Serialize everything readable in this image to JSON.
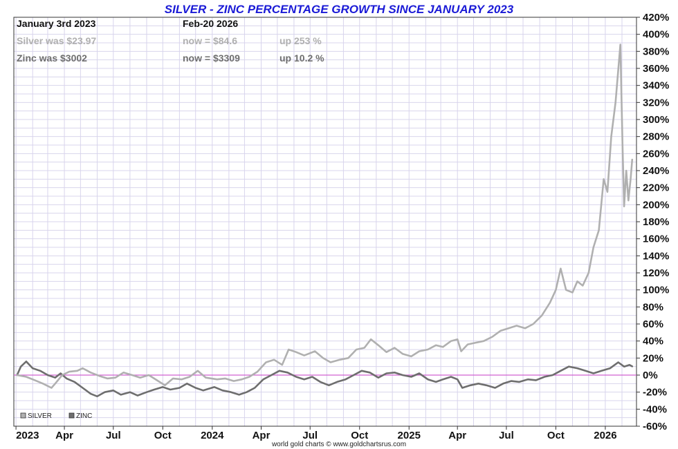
{
  "chart_data": {
    "type": "line",
    "title": "SILVER - ZINC PERCENTAGE GROWTH SINCE JANUARY 2023",
    "header": {
      "start_label": "January 3rd 2023",
      "end_label": "Feb-20  2026",
      "rows": [
        {
          "series": "SILVER",
          "was": "Silver was $23.97",
          "now": "now = $84.6",
          "change": "up 253 %",
          "color": "#b0b0b0"
        },
        {
          "series": "ZINC",
          "was": "Zinc was $3002",
          "now": "now = $3309",
          "change": "up 10.2 %",
          "color": "#6e6e6e"
        }
      ]
    },
    "ylim": [
      -60,
      420
    ],
    "y_ticks": [
      420,
      400,
      380,
      360,
      340,
      320,
      300,
      280,
      260,
      240,
      220,
      200,
      180,
      160,
      140,
      120,
      100,
      80,
      60,
      40,
      20,
      0,
      -20,
      -40,
      -60
    ],
    "y_tick_labels": [
      "420%",
      "400%",
      "380%",
      "360%",
      "340%",
      "320%",
      "300%",
      "280%",
      "260%",
      "240%",
      "220%",
      "200%",
      "180%",
      "160%",
      "140%",
      "120%",
      "100%",
      "80%",
      "60%",
      "40%",
      "20%",
      "0%",
      "-20%",
      "-40%",
      "-60%"
    ],
    "xlim": [
      "2023-01-03",
      "2026-02-20"
    ],
    "x_ticks": [
      {
        "date": "2023-01-01",
        "label": "2023"
      },
      {
        "date": "2023-04-01",
        "label": "Apr"
      },
      {
        "date": "2023-07-01",
        "label": "Jul"
      },
      {
        "date": "2023-10-01",
        "label": "Oct"
      },
      {
        "date": "2024-01-01",
        "label": "2024"
      },
      {
        "date": "2024-04-01",
        "label": "Apr"
      },
      {
        "date": "2024-07-01",
        "label": "Jul"
      },
      {
        "date": "2024-10-01",
        "label": "Oct"
      },
      {
        "date": "2025-01-01",
        "label": "2025"
      },
      {
        "date": "2025-04-01",
        "label": "Apr"
      },
      {
        "date": "2025-07-01",
        "label": "Jul"
      },
      {
        "date": "2025-10-01",
        "label": "Oct"
      },
      {
        "date": "2026-01-01",
        "label": "2026"
      }
    ],
    "grid": true,
    "zero_line_color": "#d060d0",
    "legend": "bottom-left",
    "legend_entries": [
      "SILVER",
      "ZINC"
    ],
    "source": "world gold charts © www.goldchartsrus.com",
    "series": [
      {
        "name": "SILVER",
        "color": "#b0b0b0",
        "points": [
          [
            "2023-01-03",
            0
          ],
          [
            "2023-01-20",
            -2
          ],
          [
            "2023-02-05",
            -6
          ],
          [
            "2023-02-20",
            -10
          ],
          [
            "2023-03-08",
            -15
          ],
          [
            "2023-03-15",
            -10
          ],
          [
            "2023-03-28",
            0
          ],
          [
            "2023-04-10",
            4
          ],
          [
            "2023-04-25",
            5
          ],
          [
            "2023-05-05",
            8
          ],
          [
            "2023-05-20",
            3
          ],
          [
            "2023-06-05",
            -1
          ],
          [
            "2023-06-20",
            -4
          ],
          [
            "2023-07-05",
            -3
          ],
          [
            "2023-07-20",
            3
          ],
          [
            "2023-08-05",
            0
          ],
          [
            "2023-08-20",
            -3
          ],
          [
            "2023-09-05",
            0
          ],
          [
            "2023-09-20",
            -6
          ],
          [
            "2023-10-05",
            -12
          ],
          [
            "2023-10-20",
            -4
          ],
          [
            "2023-11-05",
            -5
          ],
          [
            "2023-11-20",
            -2
          ],
          [
            "2023-12-05",
            5
          ],
          [
            "2023-12-20",
            -3
          ],
          [
            "2024-01-10",
            -5
          ],
          [
            "2024-01-25",
            -4
          ],
          [
            "2024-02-10",
            -7
          ],
          [
            "2024-02-25",
            -5
          ],
          [
            "2024-03-10",
            -2
          ],
          [
            "2024-03-25",
            4
          ],
          [
            "2024-04-10",
            15
          ],
          [
            "2024-04-25",
            18
          ],
          [
            "2024-05-10",
            12
          ],
          [
            "2024-05-22",
            30
          ],
          [
            "2024-06-05",
            27
          ],
          [
            "2024-06-20",
            23
          ],
          [
            "2024-07-10",
            28
          ],
          [
            "2024-07-25",
            20
          ],
          [
            "2024-08-08",
            15
          ],
          [
            "2024-08-25",
            18
          ],
          [
            "2024-09-10",
            20
          ],
          [
            "2024-09-25",
            30
          ],
          [
            "2024-10-10",
            32
          ],
          [
            "2024-10-22",
            42
          ],
          [
            "2024-11-05",
            35
          ],
          [
            "2024-11-20",
            27
          ],
          [
            "2024-12-05",
            32
          ],
          [
            "2024-12-20",
            25
          ],
          [
            "2025-01-05",
            22
          ],
          [
            "2025-01-20",
            28
          ],
          [
            "2025-02-05",
            30
          ],
          [
            "2025-02-20",
            35
          ],
          [
            "2025-03-05",
            33
          ],
          [
            "2025-03-20",
            40
          ],
          [
            "2025-04-01",
            42
          ],
          [
            "2025-04-08",
            28
          ],
          [
            "2025-04-20",
            36
          ],
          [
            "2025-05-05",
            38
          ],
          [
            "2025-05-20",
            40
          ],
          [
            "2025-06-05",
            45
          ],
          [
            "2025-06-20",
            52
          ],
          [
            "2025-07-05",
            55
          ],
          [
            "2025-07-20",
            58
          ],
          [
            "2025-08-05",
            55
          ],
          [
            "2025-08-20",
            60
          ],
          [
            "2025-09-05",
            70
          ],
          [
            "2025-09-20",
            85
          ],
          [
            "2025-10-01",
            100
          ],
          [
            "2025-10-10",
            125
          ],
          [
            "2025-10-20",
            100
          ],
          [
            "2025-11-01",
            97
          ],
          [
            "2025-11-10",
            110
          ],
          [
            "2025-11-20",
            105
          ],
          [
            "2025-12-01",
            120
          ],
          [
            "2025-12-10",
            150
          ],
          [
            "2025-12-20",
            170
          ],
          [
            "2025-12-29",
            230
          ],
          [
            "2026-01-05",
            215
          ],
          [
            "2026-01-12",
            280
          ],
          [
            "2026-01-20",
            320
          ],
          [
            "2026-01-29",
            388
          ],
          [
            "2026-02-02",
            270
          ],
          [
            "2026-02-05",
            198
          ],
          [
            "2026-02-09",
            240
          ],
          [
            "2026-02-13",
            205
          ],
          [
            "2026-02-17",
            230
          ],
          [
            "2026-02-20",
            253
          ]
        ]
      },
      {
        "name": "ZINC",
        "color": "#6e6e6e",
        "points": [
          [
            "2023-01-03",
            0
          ],
          [
            "2023-01-10",
            10
          ],
          [
            "2023-01-20",
            16
          ],
          [
            "2023-02-01",
            8
          ],
          [
            "2023-02-15",
            5
          ],
          [
            "2023-03-01",
            0
          ],
          [
            "2023-03-15",
            -3
          ],
          [
            "2023-03-25",
            2
          ],
          [
            "2023-04-05",
            -4
          ],
          [
            "2023-04-20",
            -8
          ],
          [
            "2023-05-05",
            -15
          ],
          [
            "2023-05-20",
            -22
          ],
          [
            "2023-06-01",
            -25
          ],
          [
            "2023-06-15",
            -20
          ],
          [
            "2023-07-01",
            -18
          ],
          [
            "2023-07-15",
            -23
          ],
          [
            "2023-08-01",
            -20
          ],
          [
            "2023-08-15",
            -24
          ],
          [
            "2023-09-01",
            -20
          ],
          [
            "2023-09-15",
            -17
          ],
          [
            "2023-10-01",
            -14
          ],
          [
            "2023-10-15",
            -17
          ],
          [
            "2023-11-01",
            -15
          ],
          [
            "2023-11-15",
            -10
          ],
          [
            "2023-12-01",
            -15
          ],
          [
            "2023-12-15",
            -18
          ],
          [
            "2024-01-05",
            -14
          ],
          [
            "2024-01-20",
            -18
          ],
          [
            "2024-02-05",
            -20
          ],
          [
            "2024-02-20",
            -23
          ],
          [
            "2024-03-05",
            -20
          ],
          [
            "2024-03-20",
            -15
          ],
          [
            "2024-04-05",
            -5
          ],
          [
            "2024-04-20",
            0
          ],
          [
            "2024-05-05",
            5
          ],
          [
            "2024-05-20",
            3
          ],
          [
            "2024-06-05",
            -2
          ],
          [
            "2024-06-20",
            -5
          ],
          [
            "2024-07-05",
            -2
          ],
          [
            "2024-07-20",
            -8
          ],
          [
            "2024-08-05",
            -12
          ],
          [
            "2024-08-20",
            -8
          ],
          [
            "2024-09-05",
            -5
          ],
          [
            "2024-09-20",
            0
          ],
          [
            "2024-10-05",
            5
          ],
          [
            "2024-10-20",
            3
          ],
          [
            "2024-11-05",
            -3
          ],
          [
            "2024-11-20",
            2
          ],
          [
            "2024-12-05",
            3
          ],
          [
            "2024-12-20",
            0
          ],
          [
            "2025-01-05",
            -2
          ],
          [
            "2025-01-20",
            2
          ],
          [
            "2025-02-05",
            -5
          ],
          [
            "2025-02-20",
            -8
          ],
          [
            "2025-03-05",
            -5
          ],
          [
            "2025-03-20",
            -2
          ],
          [
            "2025-04-01",
            -5
          ],
          [
            "2025-04-10",
            -15
          ],
          [
            "2025-04-25",
            -12
          ],
          [
            "2025-05-10",
            -10
          ],
          [
            "2025-05-25",
            -12
          ],
          [
            "2025-06-10",
            -15
          ],
          [
            "2025-06-25",
            -10
          ],
          [
            "2025-07-10",
            -7
          ],
          [
            "2025-07-25",
            -8
          ],
          [
            "2025-08-10",
            -5
          ],
          [
            "2025-08-25",
            -6
          ],
          [
            "2025-09-10",
            -2
          ],
          [
            "2025-09-25",
            0
          ],
          [
            "2025-10-10",
            5
          ],
          [
            "2025-10-25",
            10
          ],
          [
            "2025-11-10",
            8
          ],
          [
            "2025-11-25",
            5
          ],
          [
            "2025-12-10",
            2
          ],
          [
            "2025-12-25",
            5
          ],
          [
            "2026-01-10",
            8
          ],
          [
            "2026-01-25",
            15
          ],
          [
            "2026-02-05",
            10
          ],
          [
            "2026-02-15",
            12
          ],
          [
            "2026-02-20",
            10.2
          ]
        ]
      }
    ]
  }
}
